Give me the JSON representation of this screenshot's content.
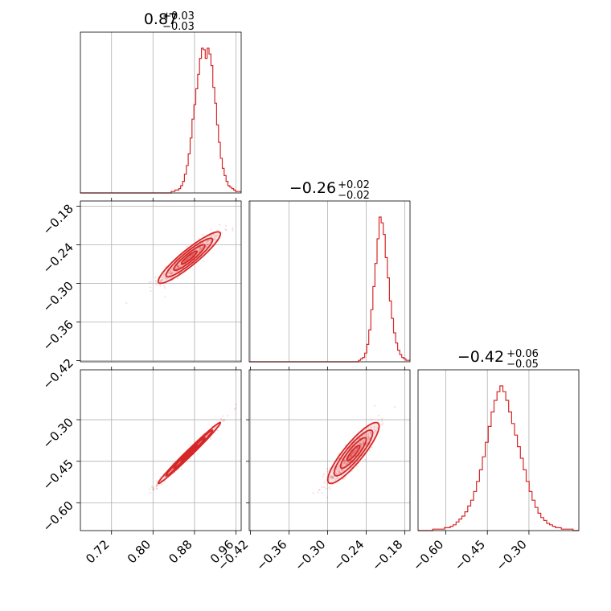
{
  "accent_color": "#d62728",
  "chart_data": {
    "type": "corner",
    "parameters": [
      {
        "range": [
          0.66,
          0.97
        ],
        "ticks": [
          0.72,
          0.8,
          0.88,
          0.96
        ],
        "tick_labels": [
          "0.72",
          "0.80",
          "0.88",
          "0.96"
        ],
        "median": 0.87,
        "plus": "+0.03",
        "minus": "−0.03",
        "title_main": "0.87",
        "title_sup": "+0.03",
        "title_sub": "−0.03"
      },
      {
        "range": [
          -0.422,
          -0.172
        ],
        "ticks": [
          -0.42,
          -0.36,
          -0.3,
          -0.24,
          -0.18
        ],
        "tick_labels": [
          "−0.42",
          "−0.36",
          "−0.30",
          "−0.24",
          "−0.18"
        ],
        "median": -0.26,
        "plus": "+0.02",
        "minus": "−0.02",
        "title_main": "−0.26",
        "title_sup": "+0.02",
        "title_sub": "−0.02"
      },
      {
        "range": [
          -0.7,
          -0.12
        ],
        "ticks": [
          -0.6,
          -0.45,
          -0.3
        ],
        "tick_labels": [
          "−0.60",
          "−0.45",
          "−0.30"
        ],
        "median": -0.42,
        "plus": "+0.06",
        "minus": "−0.05",
        "title_main": "−0.42",
        "title_sup": "+0.06",
        "title_sub": "−0.05"
      }
    ],
    "histograms": [
      {
        "bins": [
          0.66,
          0.97
        ],
        "counts": [
          0,
          0,
          0,
          0,
          0,
          0,
          0,
          0,
          0,
          0,
          0,
          0,
          0,
          0,
          0,
          0,
          0,
          0,
          0,
          0,
          0,
          0,
          0,
          0,
          0,
          0,
          0,
          0,
          0,
          0,
          0,
          0,
          0,
          0,
          0,
          0,
          0,
          0,
          0,
          0,
          0,
          0,
          0,
          0,
          0,
          0,
          0,
          0,
          1,
          1,
          2,
          2,
          3,
          5,
          8,
          13,
          19,
          27,
          38,
          51,
          61,
          72,
          82,
          93,
          100,
          99,
          93,
          100,
          96,
          88,
          73,
          62,
          47,
          35,
          24,
          17,
          12,
          8,
          5,
          4,
          3,
          2,
          1,
          1,
          1
        ]
      },
      {
        "bins": [
          -0.422,
          -0.172
        ],
        "counts": [
          0,
          0,
          0,
          0,
          0,
          0,
          0,
          0,
          0,
          0,
          0,
          0,
          0,
          0,
          0,
          0,
          0,
          0,
          0,
          0,
          0,
          0,
          0,
          0,
          0,
          0,
          0,
          0,
          0,
          0,
          0,
          0,
          0,
          0,
          0,
          0,
          0,
          0,
          0,
          0,
          0,
          0,
          0,
          0,
          0,
          0,
          0,
          0,
          0,
          0,
          0,
          0,
          0,
          1,
          2,
          3,
          6,
          12,
          22,
          36,
          52,
          68,
          85,
          100,
          96,
          88,
          72,
          58,
          42,
          30,
          20,
          13,
          8,
          5,
          3,
          2,
          1,
          1
        ]
      },
      {
        "bins": [
          -0.7,
          -0.12
        ],
        "counts": [
          0,
          0,
          0,
          0,
          0,
          1,
          1,
          1,
          1,
          2,
          2,
          3,
          4,
          6,
          8,
          10,
          13,
          17,
          21,
          27,
          34,
          42,
          51,
          61,
          72,
          82,
          90,
          96,
          100,
          96,
          90,
          82,
          74,
          66,
          58,
          50,
          42,
          34,
          27,
          21,
          16,
          12,
          9,
          7,
          5,
          4,
          3,
          2,
          2,
          1,
          1,
          1,
          1,
          0,
          0
        ]
      }
    ],
    "pairs": [
      {
        "x_param": 0,
        "y_param": 1,
        "correlation": 0.92,
        "sigma": [
          0.03,
          0.02
        ]
      },
      {
        "x_param": 0,
        "y_param": 2,
        "correlation": 0.99,
        "sigma": [
          0.03,
          0.055
        ]
      },
      {
        "x_param": 1,
        "y_param": 2,
        "correlation": 0.88,
        "sigma": [
          0.02,
          0.055
        ]
      }
    ],
    "contour_levels_sigma": [
      0.5,
      1.0,
      1.5,
      2.0
    ],
    "grid": true
  }
}
